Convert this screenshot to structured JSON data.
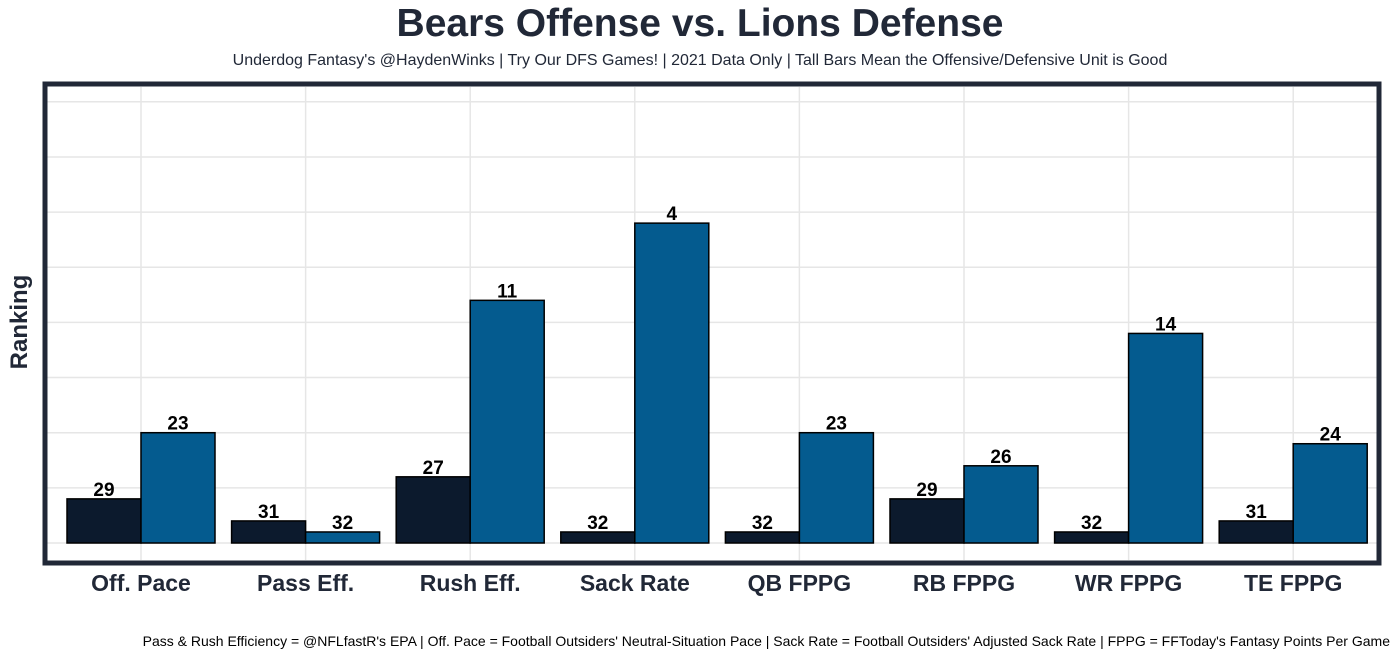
{
  "title": "Bears Offense vs. Lions Defense",
  "subtitle": "Underdog Fantasy's @HaydenWinks | Try Our DFS Games! | 2021 Data Only | Tall Bars Mean the Offensive/Defensive Unit is Good",
  "caption": "Pass & Rush Efficiency = @NFLfastR's EPA | Off. Pace = Football Outsiders' Neutral-Situation Pace | Sack Rate = Football Outsiders' Adjusted Sack Rate | FPPG = FFToday's Fantasy Points Per Game",
  "colors": {
    "offense": "#0c1a2d",
    "defense": "#045b8f",
    "frame": "#212837",
    "grid": "#e6e6e6"
  },
  "chart_data": {
    "type": "bar",
    "title": "Bears Offense vs. Lions Defense",
    "ylabel": "Ranking",
    "xlabel": "",
    "categories": [
      "Off. Pace",
      "Pass Eff.",
      "Rush Eff.",
      "Sack Rate",
      "QB FPPG",
      "RB FPPG",
      "WR FPPG",
      "TE FPPG"
    ],
    "series": [
      {
        "values": [
          29,
          31,
          27,
          32,
          32,
          29,
          32,
          31
        ]
      },
      {
        "values": [
          23,
          32,
          11,
          4,
          23,
          26,
          14,
          24
        ]
      }
    ],
    "value_axis": "rank, bar height = 33 - rank",
    "ylim": [
      0,
      32
    ],
    "grid": true,
    "legend": "none"
  }
}
